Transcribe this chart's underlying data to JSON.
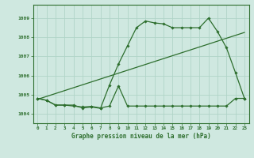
{
  "title": "Graphe pression niveau de la mer (hPa)",
  "bg_color": "#cfe8e0",
  "line_color": "#2d6e2d",
  "grid_color": "#b0d4c8",
  "xlim": [
    -0.5,
    23.5
  ],
  "ylim": [
    1003.5,
    1009.7
  ],
  "yticks": [
    1004,
    1005,
    1006,
    1007,
    1008,
    1009
  ],
  "xticks": [
    0,
    1,
    2,
    3,
    4,
    5,
    6,
    7,
    8,
    9,
    10,
    11,
    12,
    13,
    14,
    15,
    16,
    17,
    18,
    19,
    20,
    21,
    22,
    23
  ],
  "s1x": [
    0,
    1,
    2,
    3,
    4,
    5,
    6,
    7,
    8,
    9,
    10,
    11,
    12,
    13,
    14,
    15,
    16,
    17,
    18,
    19,
    20,
    21,
    22,
    23
  ],
  "s1y": [
    1004.8,
    1004.7,
    1004.45,
    1004.45,
    1004.45,
    1004.3,
    1004.35,
    1004.28,
    1005.5,
    1006.6,
    1007.55,
    1008.5,
    1008.85,
    1008.75,
    1008.7,
    1008.5,
    1008.5,
    1008.5,
    1008.5,
    1009.0,
    1008.3,
    1007.45,
    1006.15,
    1004.8
  ],
  "s2x": [
    0,
    1,
    2,
    3,
    4,
    5,
    6,
    7,
    8,
    9,
    10,
    11,
    12,
    13,
    14,
    15,
    16,
    17,
    18,
    19,
    20,
    21,
    22,
    23
  ],
  "s2y": [
    1004.8,
    1004.7,
    1004.45,
    1004.45,
    1004.4,
    1004.35,
    1004.38,
    1004.3,
    1004.4,
    1005.45,
    1004.4,
    1004.4,
    1004.4,
    1004.4,
    1004.4,
    1004.4,
    1004.4,
    1004.4,
    1004.4,
    1004.4,
    1004.4,
    1004.4,
    1004.8,
    1004.8
  ],
  "s3x": [
    0,
    23
  ],
  "s3y": [
    1004.75,
    1008.25
  ]
}
